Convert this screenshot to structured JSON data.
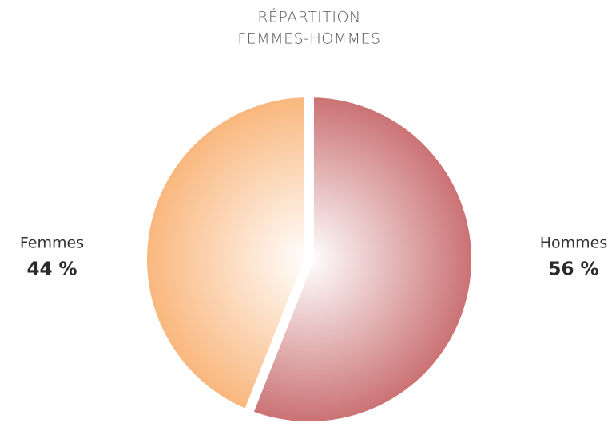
{
  "chart_data": {
    "type": "pie",
    "title": [
      "RÉPARTITION",
      "FEMMES-HOMMES"
    ],
    "categories": [
      "Hommes",
      "Femmes"
    ],
    "values": [
      56,
      44
    ],
    "value_labels": [
      "56 %",
      "44 %"
    ],
    "colors": [
      "#c96e70",
      "#f9b57a"
    ]
  }
}
